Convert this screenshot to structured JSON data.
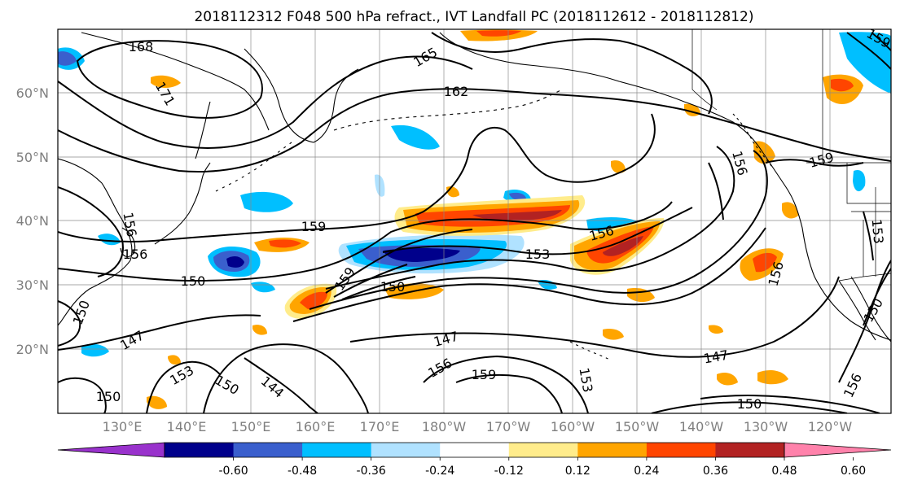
{
  "title": "2018112312 F048 500 hPa refract., IVT Landfall PC (2018112612 - 2018112812)",
  "map": {
    "lat_labels": [
      "60°N",
      "50°N",
      "40°N",
      "30°N",
      "20°N"
    ],
    "lon_labels": [
      "130°E",
      "140°E",
      "150°E",
      "160°E",
      "170°E",
      "180°W",
      "170°W",
      "160°W",
      "150°W",
      "140°W",
      "130°W",
      "120°W"
    ]
  },
  "contour_labels": [
    "168",
    "165",
    "171",
    "162",
    "159",
    "156",
    "156",
    "150",
    "159",
    "153",
    "156",
    "147",
    "147",
    "156",
    "159",
    "147",
    "150",
    "153",
    "150",
    "144",
    "156",
    "150",
    "159",
    "153",
    "156",
    "150",
    "150",
    "159",
    "156",
    "153",
    "150"
  ],
  "colorbar": {
    "colors": [
      "#9932cc",
      "#00008b",
      "#3a5fcd",
      "#00bfff",
      "#b0e2ff",
      "#ffffff",
      "#ffec8b",
      "#ffa500",
      "#ff4500",
      "#b22222",
      "#ff82ab"
    ],
    "tick_labels": [
      "-0.60",
      "-0.48",
      "-0.36",
      "-0.24",
      "-0.12",
      "0.12",
      "0.24",
      "0.36",
      "0.48",
      "0.60"
    ]
  }
}
